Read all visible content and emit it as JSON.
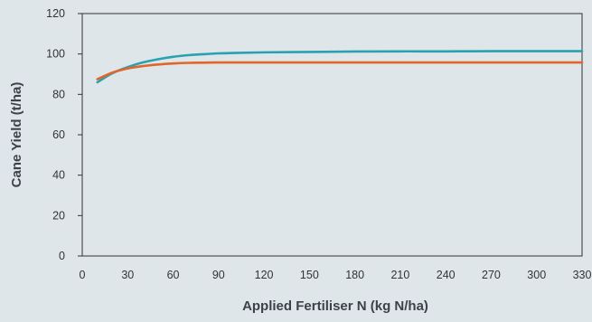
{
  "chart_data": {
    "type": "line",
    "title": "",
    "xlabel": "Applied Fertiliser N (kg N/ha)",
    "ylabel": "Cane Yield (t/ha)",
    "xlim": [
      0,
      330
    ],
    "ylim": [
      0,
      120
    ],
    "x_ticks": [
      0,
      30,
      60,
      90,
      120,
      150,
      180,
      210,
      240,
      270,
      300,
      330
    ],
    "y_ticks": [
      0,
      20,
      40,
      60,
      80,
      100,
      120
    ],
    "grid": false,
    "legend": "none",
    "series": [
      {
        "color": "#2aa1b0",
        "x": [
          10,
          20,
          30,
          40,
          50,
          60,
          70,
          80,
          90,
          100,
          120,
          150,
          180,
          210,
          240,
          270,
          300,
          330
        ],
        "y": [
          86.0,
          90.5,
          93.5,
          95.8,
          97.4,
          98.6,
          99.4,
          99.9,
          100.3,
          100.5,
          100.8,
          101.0,
          101.2,
          101.3,
          101.3,
          101.4,
          101.4,
          101.4
        ]
      },
      {
        "color": "#e0662a",
        "x": [
          10,
          20,
          30,
          40,
          50,
          60,
          70,
          80,
          90,
          100,
          120,
          150,
          180,
          210,
          240,
          270,
          300,
          330
        ],
        "y": [
          87.5,
          90.8,
          92.8,
          94.0,
          94.8,
          95.3,
          95.6,
          95.7,
          95.8,
          95.8,
          95.8,
          95.8,
          95.8,
          95.8,
          95.8,
          95.8,
          95.8,
          95.8
        ]
      }
    ]
  }
}
